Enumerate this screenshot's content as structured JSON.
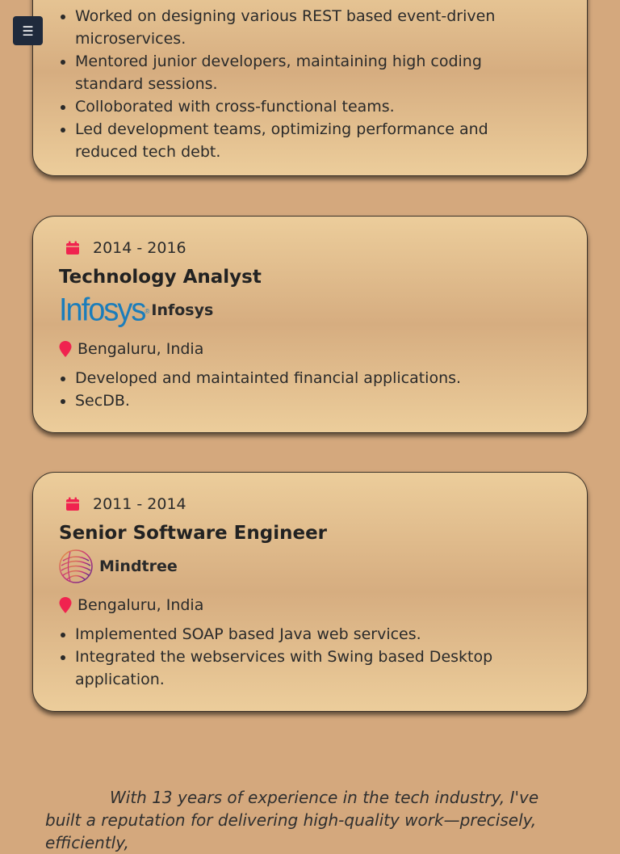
{
  "menu": {
    "label": "☰"
  },
  "cards": [
    {
      "bullets": [
        "Worked on designing various REST based event-driven microservices.",
        "Mentored junior developers, maintaining high coding standard sessions.",
        "Colloborated with cross-functional teams.",
        "Led development teams, optimizing performance and reduced tech debt."
      ]
    },
    {
      "date": "2014 - 2016",
      "title": "Technology Analyst",
      "logo_text": "Infosys",
      "logo_mark": "®",
      "company": "Infosys",
      "location": "Bengaluru, India",
      "bullets": [
        "Developed and maintainted financial applications.",
        "SecDB."
      ]
    },
    {
      "date": "2011 - 2014",
      "title": "Senior Software Engineer",
      "company": "Mindtree",
      "location": "Bengaluru, India",
      "bullets": [
        "Implemented SOAP based Java web services.",
        "Integrated the webservices with Swing based Desktop application."
      ]
    }
  ],
  "summary": "With 13 years of experience in the tech industry, I've built a reputation for delivering high-quality work—precisely, efficiently,",
  "colors": {
    "background": "#d4a87d",
    "icon_accent": "#f0234f",
    "infosys_blue": "#1b7dbb",
    "menu_bg": "#1f2a3c"
  }
}
